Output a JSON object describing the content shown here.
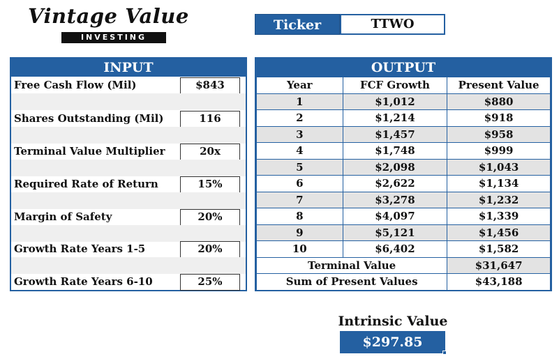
{
  "logo": {
    "script": "Vintage Value",
    "sub": "INVESTING"
  },
  "ticker": {
    "label": "Ticker",
    "value": "TTWO"
  },
  "input": {
    "title": "INPUT",
    "rows": [
      {
        "label": "Free Cash Flow (Mil)",
        "value": "$843"
      },
      {
        "label": "Shares Outstanding (Mil)",
        "value": "116"
      },
      {
        "label": "Terminal Value Multiplier",
        "value": "20x"
      },
      {
        "label": "Required Rate of Return",
        "value": "15%"
      },
      {
        "label": "Margin of Safety",
        "value": "20%"
      },
      {
        "label": "Growth Rate Years 1-5",
        "value": "20%"
      },
      {
        "label": "Growth Rate Years 6-10",
        "value": "25%"
      }
    ]
  },
  "output": {
    "title": "OUTPUT",
    "headers": [
      "Year",
      "FCF Growth",
      "Present Value"
    ],
    "rows": [
      [
        "1",
        "$1,012",
        "$880"
      ],
      [
        "2",
        "$1,214",
        "$918"
      ],
      [
        "3",
        "$1,457",
        "$958"
      ],
      [
        "4",
        "$1,748",
        "$999"
      ],
      [
        "5",
        "$2,098",
        "$1,043"
      ],
      [
        "6",
        "$2,622",
        "$1,134"
      ],
      [
        "7",
        "$3,278",
        "$1,232"
      ],
      [
        "8",
        "$4,097",
        "$1,339"
      ],
      [
        "9",
        "$5,121",
        "$1,456"
      ],
      [
        "10",
        "$6,402",
        "$1,582"
      ]
    ],
    "terminal_label": "Terminal Value",
    "terminal_value": "$31,647",
    "sum_label": "Sum of Present Values",
    "sum_value": "$43,188"
  },
  "intrinsic": {
    "label": "Intrinsic Value",
    "value": "$297.85"
  },
  "colors": {
    "accent": "#2460a1",
    "shade": "#e3e3e3"
  }
}
